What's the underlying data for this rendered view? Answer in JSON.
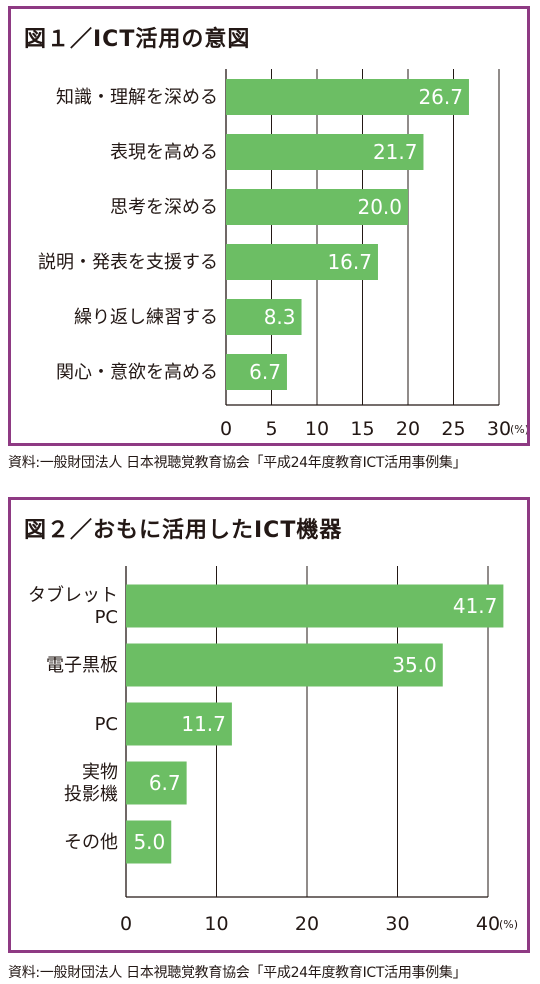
{
  "charts": [
    {
      "title": "図１／ICT活用の意図",
      "source": "資料:一般財団法人 日本視聴覚教育協会「平成24年度教育ICT活用事例集」",
      "bar_color": "#6cbe64",
      "frame_color": "#8e3a83"
    },
    {
      "title": "図２／おもに活用したICT機器",
      "source": "資料:一般財団法人 日本視聴覚教育協会「平成24年度教育ICT活用事例集」",
      "bar_color": "#6cbe64",
      "frame_color": "#8e3a83"
    }
  ],
  "chart_data": [
    {
      "type": "bar",
      "orientation": "horizontal",
      "title": "図１／ICT活用の意図",
      "categories": [
        "知識・理解を深める",
        "表現を高める",
        "思考を深める",
        "説明・発表を支援する",
        "繰り返し練習する",
        "関心・意欲を高める"
      ],
      "values": [
        26.7,
        21.7,
        20.0,
        16.7,
        8.3,
        6.7
      ],
      "value_labels": [
        "26.7",
        "21.7",
        "20.0",
        "16.7",
        "8.3",
        "6.7"
      ],
      "xticks": [
        "0",
        "5",
        "10",
        "15",
        "20",
        "25",
        "30"
      ],
      "xlim": [
        0,
        30
      ],
      "unit": "(%)",
      "grid": true
    },
    {
      "type": "bar",
      "orientation": "horizontal",
      "title": "図２／おもに活用したICT機器",
      "categories": [
        [
          "タブレット",
          "PC"
        ],
        [
          "電子黒板"
        ],
        [
          "PC"
        ],
        [
          "実物",
          "投影機"
        ],
        [
          "その他"
        ]
      ],
      "values": [
        41.7,
        35.0,
        11.7,
        6.7,
        5.0
      ],
      "value_labels": [
        "41.7",
        "35.0",
        "11.7",
        "6.7",
        "5.0"
      ],
      "xticks": [
        "0",
        "10",
        "20",
        "30",
        "40"
      ],
      "xlim": [
        0,
        40
      ],
      "unit": "(%)",
      "grid": true
    }
  ]
}
